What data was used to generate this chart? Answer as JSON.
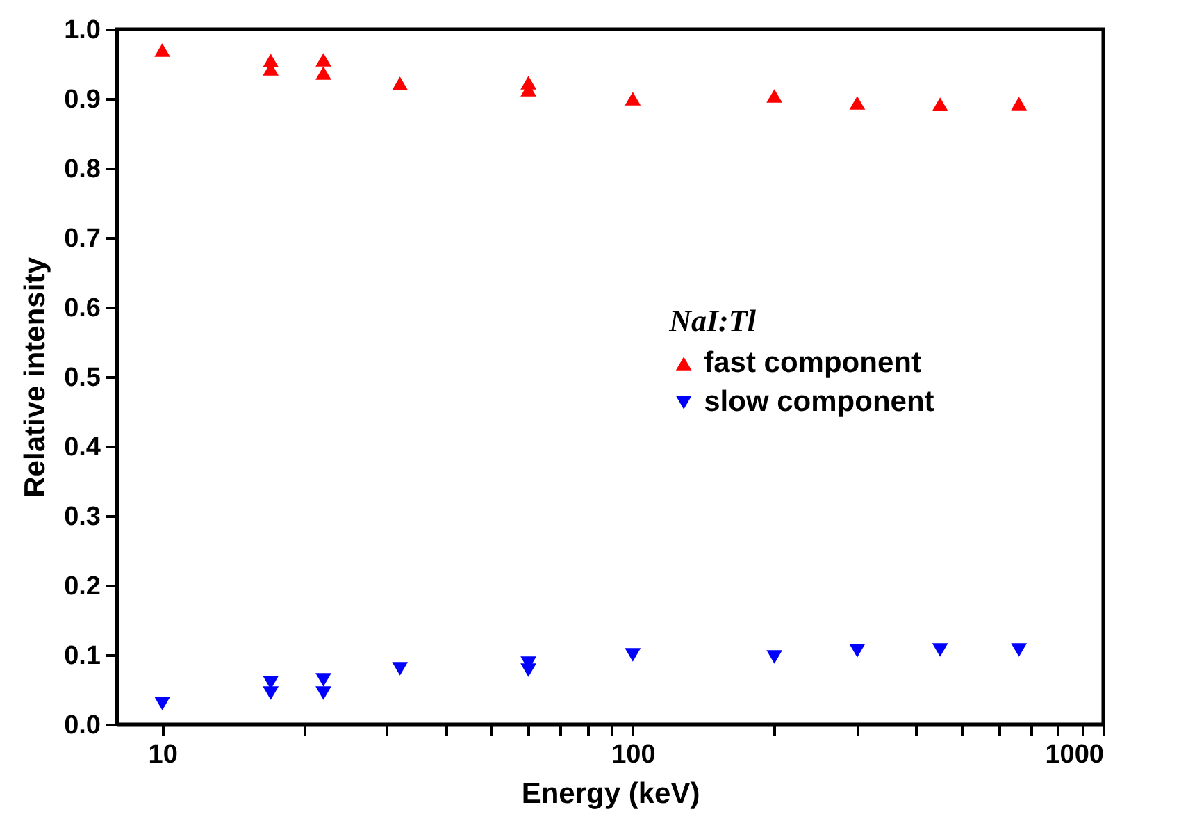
{
  "chart_data": {
    "type": "scatter",
    "xlabel": "Energy (keV)",
    "ylabel": "Relative intensity",
    "legend_title": "NaI:Tl",
    "log": "x",
    "grid": false,
    "legend": "right",
    "xlim": [
      8,
      1000
    ],
    "xticks": [
      10,
      {
        "value": 20,
        "label": null
      },
      {
        "value": 30,
        "label": null
      },
      {
        "value": 40,
        "label": null
      },
      {
        "value": 50,
        "label": null
      },
      {
        "value": 60,
        "label": null
      },
      {
        "value": 70,
        "label": null
      },
      {
        "value": 80,
        "label": null
      },
      {
        "value": 90,
        "label": null
      },
      100,
      {
        "value": 200,
        "label": null
      },
      {
        "value": 300,
        "label": null
      },
      {
        "value": 400,
        "label": null
      },
      {
        "value": 500,
        "label": null
      },
      {
        "value": 600,
        "label": null
      },
      {
        "value": 700,
        "label": null
      },
      {
        "value": 800,
        "label": null
      },
      {
        "value": 900,
        "label": null
      },
      1000
    ],
    "ylim": [
      0,
      1.0
    ],
    "yticks": [
      {
        "value": 0,
        "label": "0.0"
      },
      0.1,
      0.2,
      0.3,
      0.4,
      0.5,
      0.6,
      0.7,
      0.8,
      0.9,
      {
        "value": 1,
        "label": "1.0"
      }
    ],
    "series": [
      {
        "name": "fast component",
        "color": "#ff0000",
        "marker": "triangle",
        "x": [
          10,
          17,
          17,
          22,
          22,
          32,
          60,
          60,
          100,
          200,
          300,
          450,
          662
        ],
        "values": [
          0.97,
          0.955,
          0.943,
          0.956,
          0.937,
          0.922,
          0.923,
          0.913,
          0.9,
          0.904,
          0.894,
          0.892,
          0.893
        ]
      },
      {
        "name": "slow component",
        "color": "#0000ff",
        "marker": "triangle-down",
        "x": [
          10,
          17,
          17,
          22,
          22,
          32,
          60,
          60,
          100,
          200,
          300,
          450,
          662
        ],
        "values": [
          0.03,
          0.06,
          0.045,
          0.064,
          0.045,
          0.08,
          0.088,
          0.078,
          0.1,
          0.097,
          0.106,
          0.107,
          0.107
        ]
      }
    ]
  }
}
